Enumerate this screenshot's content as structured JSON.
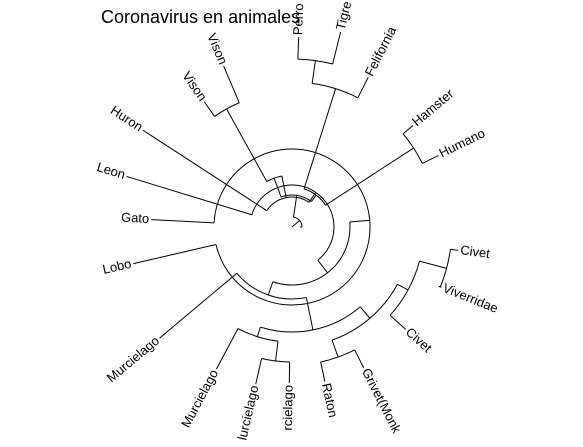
{
  "title": "Coronavirus en animales",
  "tree": {
    "root": "n0",
    "nodes": {
      "n0": {
        "r": 0,
        "children": [
          "n1",
          "n2"
        ]
      },
      "n1": {
        "r": 10,
        "children": [
          "n3",
          "n4"
        ]
      },
      "n3": {
        "r": 32,
        "children": [
          "n5",
          "n6"
        ]
      },
      "n5": {
        "r": 52,
        "children": [
          "n7",
          "n8"
        ]
      },
      "n7": {
        "r": 135,
        "children": [
          "t_vison1",
          "t_vison2"
        ]
      },
      "n8": {
        "r": 30,
        "children": [
          "t_huron",
          "n9"
        ]
      },
      "n9": {
        "r": 42,
        "children": [
          "t_leon",
          "n10"
        ]
      },
      "n10": {
        "r": 58,
        "children": [
          "n11",
          "n12"
        ]
      },
      "n11": {
        "r": 78,
        "children": [
          "t_gato",
          "t_lobo"
        ]
      },
      "n12": {
        "r": 72,
        "children": [
          "t_murcielago1",
          "n13"
        ]
      },
      "n13": {
        "r": 105,
        "children": [
          "n14",
          "n15"
        ]
      },
      "n14": {
        "r": 115,
        "children": [
          "t_murcielago2",
          "n16"
        ]
      },
      "n16": {
        "r": 135,
        "children": [
          "t_murcielago3",
          "t_murcielago4"
        ]
      },
      "n15": {
        "r": 120,
        "children": [
          "n17",
          "n18"
        ]
      },
      "n17": {
        "r": 138,
        "children": [
          "t_raton",
          "t_grivet"
        ]
      },
      "n18": {
        "r": 132,
        "children": [
          "t_civet2",
          "n19"
        ]
      },
      "n19": {
        "r": 160,
        "children": [
          "t_civet1",
          "t_viverridae"
        ]
      },
      "n6": {
        "r": 40,
        "children": [
          "n20",
          "n21"
        ]
      },
      "n20": {
        "r": 145,
        "children": [
          "n22",
          "t_felifornia"
        ]
      },
      "n22": {
        "r": 168,
        "children": [
          "t_perro",
          "t_tigre"
        ]
      },
      "n21": {
        "r": 145,
        "children": [
          "t_hamster",
          "t_humano"
        ]
      },
      "n2": {
        "r": 12,
        "children": []
      },
      "n4": {
        "r": 8,
        "children": []
      }
    },
    "leaves": [
      {
        "id": "t_perro",
        "label": "Perro",
        "angle": 88,
        "r": 187,
        "tip": 190
      },
      {
        "id": "t_tigre",
        "label": "Tigre",
        "angle": 76,
        "r": 198,
        "tip": 201
      },
      {
        "id": "t_felifornia",
        "label": "Felifornia",
        "angle": 63,
        "r": 165,
        "tip": 168
      },
      {
        "id": "t_hamster",
        "label": "Hamster",
        "angle": 40,
        "r": 155,
        "tip": 158
      },
      {
        "id": "t_humano",
        "label": "Humano",
        "angle": 26,
        "r": 160,
        "tip": 163
      },
      {
        "id": "t_civet1",
        "label": "Civet",
        "angle": -8,
        "r": 165,
        "tip": 168
      },
      {
        "id": "t_viverridae",
        "label": "Viverridae",
        "angle": -22,
        "r": 158,
        "tip": 161
      },
      {
        "id": "t_civet2",
        "label": "Civet",
        "angle": -42,
        "r": 150,
        "tip": 153
      },
      {
        "id": "t_grivet",
        "label": "Grivet(Monk",
        "angle": -63,
        "r": 155,
        "tip": 158
      },
      {
        "id": "t_raton",
        "label": "Raton",
        "angle": -78,
        "r": 155,
        "tip": 158
      },
      {
        "id": "t_murcielago4",
        "label": "rcielago",
        "angle": -91,
        "r": 153,
        "tip": 156
      },
      {
        "id": "t_murcielago3",
        "label": "lurcielago",
        "angle": -103,
        "r": 158,
        "tip": 161
      },
      {
        "id": "t_murcielago2",
        "label": "Murcielago",
        "angle": -118,
        "r": 158,
        "tip": 161
      },
      {
        "id": "t_murcielago1",
        "label": "Murcielago",
        "angle": -140,
        "r": 170,
        "tip": 173
      },
      {
        "id": "t_lobo",
        "label": "Lobo",
        "angle": -167,
        "r": 160,
        "tip": 163
      },
      {
        "id": "t_gato",
        "label": "Gato",
        "angle": 177,
        "r": 138,
        "tip": 141
      },
      {
        "id": "t_leon",
        "label": "Leon",
        "angle": 163,
        "r": 170,
        "tip": 173
      },
      {
        "id": "t_huron",
        "label": "Huron",
        "angle": 147,
        "r": 175,
        "tip": 178
      },
      {
        "id": "t_vison2",
        "label": "Vison",
        "angle": 125,
        "r": 150,
        "tip": 153
      },
      {
        "id": "t_vison1",
        "label": "Vison",
        "angle": 113,
        "r": 172,
        "tip": 175
      }
    ]
  }
}
